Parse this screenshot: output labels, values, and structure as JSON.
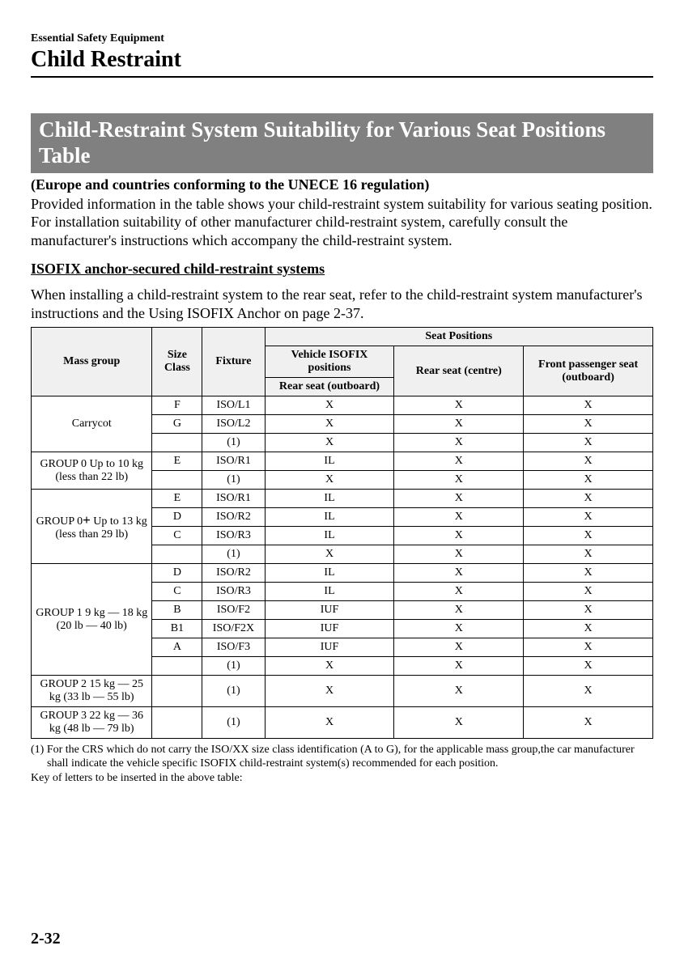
{
  "header": {
    "small": "Essential Safety Equipment",
    "large": "Child Restraint"
  },
  "section_title": "Child-Restraint System Suitability for Various Seat Positions Table",
  "region_note": "(Europe and countries conforming to the UNECE 16 regulation)",
  "intro": "Provided information in the table shows your child-restraint system suitability for various seating position. For installation suitability of other manufacturer child-restraint system, carefully consult the manufacturer's instructions which accompany the child-restraint system.",
  "sub_heading": "ISOFIX anchor-secured child-restraint systems",
  "sub_body": "When installing a child-restraint system to the rear seat, refer to the child-restraint system manufacturer's instructions and the Using ISOFIX Anchor on page 2-37.",
  "table": {
    "headers": {
      "mass": "Mass group",
      "size": "Size Class",
      "fixture": "Fixture",
      "positions": "Seat Positions",
      "isofix": "Vehicle ISOFIX positions",
      "rear_out": "Rear seat (outboard)",
      "rear_centre": "Rear seat (centre)",
      "front": "Front passenger seat (outboard)"
    },
    "groups": [
      {
        "name": "Carrycot",
        "rows": [
          {
            "size": "F",
            "fix": "ISO/L1",
            "a": "X",
            "b": "X",
            "c": "X"
          },
          {
            "size": "G",
            "fix": "ISO/L2",
            "a": "X",
            "b": "X",
            "c": "X"
          },
          {
            "size": "",
            "fix": "(1)",
            "a": "X",
            "b": "X",
            "c": "X"
          }
        ]
      },
      {
        "name": "GROUP 0 Up to 10 kg (less than 22 lb)",
        "rows": [
          {
            "size": "E",
            "fix": "ISO/R1",
            "a": "IL",
            "b": "X",
            "c": "X"
          },
          {
            "size": "",
            "fix": "(1)",
            "a": "X",
            "b": "X",
            "c": "X"
          }
        ]
      },
      {
        "name": "GROUP 0+ Up to 13 kg (less than 29 lb)",
        "plus": true,
        "rows": [
          {
            "size": "E",
            "fix": "ISO/R1",
            "a": "IL",
            "b": "X",
            "c": "X"
          },
          {
            "size": "D",
            "fix": "ISO/R2",
            "a": "IL",
            "b": "X",
            "c": "X"
          },
          {
            "size": "C",
            "fix": "ISO/R3",
            "a": "IL",
            "b": "X",
            "c": "X"
          },
          {
            "size": "",
            "fix": "(1)",
            "a": "X",
            "b": "X",
            "c": "X"
          }
        ]
      },
      {
        "name": "GROUP 1 9 kg — 18 kg (20 lb — 40 lb)",
        "rows": [
          {
            "size": "D",
            "fix": "ISO/R2",
            "a": "IL",
            "b": "X",
            "c": "X"
          },
          {
            "size": "C",
            "fix": "ISO/R3",
            "a": "IL",
            "b": "X",
            "c": "X"
          },
          {
            "size": "B",
            "fix": "ISO/F2",
            "a": "IUF",
            "b": "X",
            "c": "X"
          },
          {
            "size": "B1",
            "fix": "ISO/F2X",
            "a": "IUF",
            "b": "X",
            "c": "X"
          },
          {
            "size": "A",
            "fix": "ISO/F3",
            "a": "IUF",
            "b": "X",
            "c": "X"
          },
          {
            "size": "",
            "fix": "(1)",
            "a": "X",
            "b": "X",
            "c": "X"
          }
        ]
      },
      {
        "name": "GROUP 2 15 kg — 25 kg (33 lb — 55 lb)",
        "rows": [
          {
            "size": "",
            "fix": "(1)",
            "a": "X",
            "b": "X",
            "c": "X"
          }
        ]
      },
      {
        "name": "GROUP 3 22 kg — 36 kg (48 lb — 79 lb)",
        "rows": [
          {
            "size": "",
            "fix": "(1)",
            "a": "X",
            "b": "X",
            "c": "X"
          }
        ]
      }
    ]
  },
  "footnote": "(1) For the CRS which do not carry the ISO/XX size class identification (A to G), for the applicable mass group,the car manufacturer shall indicate the vehicle specific ISOFIX child-restraint system(s) recommended for each position.",
  "keyline": "Key of letters to be inserted in the above table:",
  "page": "2-32"
}
